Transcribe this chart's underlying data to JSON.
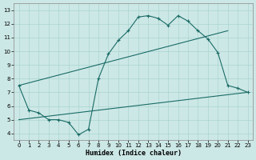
{
  "bg_color": "#cce8e6",
  "grid_color": "#aad4d0",
  "line_color": "#1a6b66",
  "xlabel": "Humidex (Indice chaleur)",
  "xlim": [
    -0.5,
    23.5
  ],
  "ylim": [
    3.5,
    13.5
  ],
  "xticks": [
    0,
    1,
    2,
    3,
    4,
    5,
    6,
    7,
    8,
    9,
    10,
    11,
    12,
    13,
    14,
    15,
    16,
    17,
    18,
    19,
    20,
    21,
    22,
    23
  ],
  "yticks": [
    4,
    5,
    6,
    7,
    8,
    9,
    10,
    11,
    12,
    13
  ],
  "curve_x": [
    0,
    1,
    2,
    3,
    4,
    5,
    6,
    7,
    8,
    9,
    10,
    11,
    12,
    13,
    14,
    15,
    16,
    17,
    18,
    19,
    20,
    21,
    22,
    23
  ],
  "curve_y": [
    7.5,
    5.7,
    5.5,
    5.0,
    5.0,
    4.8,
    3.9,
    4.3,
    8.0,
    9.8,
    10.8,
    11.5,
    12.5,
    12.6,
    12.4,
    11.9,
    12.6,
    12.2,
    11.5,
    10.9,
    9.9,
    7.5,
    7.3,
    7.0
  ],
  "line1_x": [
    0,
    21
  ],
  "line1_y": [
    7.5,
    11.5
  ],
  "line2_x": [
    0,
    23
  ],
  "line2_y": [
    5.0,
    7.0
  ]
}
